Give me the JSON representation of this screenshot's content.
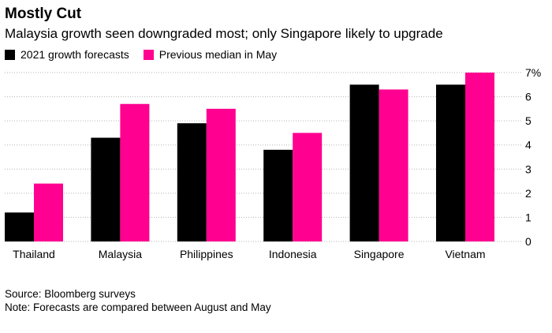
{
  "title": "Mostly Cut",
  "subtitle": "Malaysia growth seen downgraded most; only Singapore likely to upgrade",
  "source": "Source: Bloomberg surveys",
  "note": "Note: Forecasts are compared between August and May",
  "colors": {
    "series1": "#000000",
    "series2": "#ff0090",
    "grid": "#b3b3b3"
  },
  "chart_data": {
    "type": "bar",
    "title": "Mostly Cut",
    "subtitle": "Malaysia growth seen downgraded most; only Singapore likely to upgrade",
    "categories": [
      "Thailand",
      "Malaysia",
      "Philippines",
      "Indonesia",
      "Singapore",
      "Vietnam"
    ],
    "series": [
      {
        "name": "2021 growth forecasts",
        "values": [
          1.2,
          4.3,
          4.9,
          3.8,
          6.5,
          6.5
        ]
      },
      {
        "name": "Previous median in May",
        "values": [
          2.4,
          5.7,
          5.5,
          4.5,
          6.3,
          7.0
        ]
      }
    ],
    "yticks": [
      "0",
      "1",
      "2",
      "3",
      "4",
      "5",
      "6",
      "7%"
    ],
    "ylim": [
      0,
      7
    ],
    "xlabel": "",
    "ylabel": "",
    "grid": true,
    "legend_position": "top-left"
  }
}
